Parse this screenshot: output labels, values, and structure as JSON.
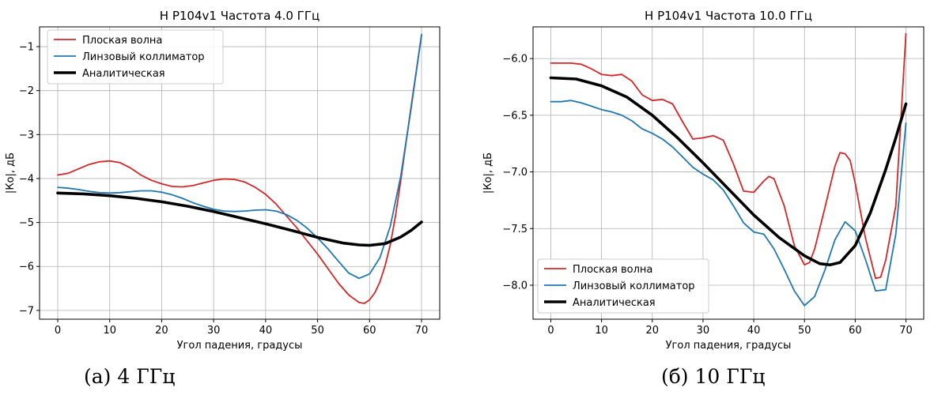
{
  "captions": {
    "a": "(а) 4 ГГц",
    "b": "(б) 10 ГГц"
  },
  "colors": {
    "plane": "#d62728",
    "lens": "#1f77b4",
    "analytic": "#000000",
    "grid": "#b0b0b0"
  },
  "chart_data": [
    {
      "type": "line",
      "title": "H P104v1 Частота 4.0 ГГц",
      "xlabel": "Угол падения, градусы",
      "ylabel": "|Ко|, дБ",
      "xlim": [
        -3.5,
        73.5
      ],
      "ylim": [
        -7.2,
        -0.55
      ],
      "xticks": [
        0,
        10,
        20,
        30,
        40,
        50,
        60,
        70
      ],
      "xtick_labels": [
        "0",
        "10",
        "20",
        "30",
        "40",
        "50",
        "60",
        "70"
      ],
      "yticks": [
        -7,
        -6,
        -5,
        -4,
        -3,
        -2,
        -1
      ],
      "ytick_labels": [
        "−7",
        "−6",
        "−5",
        "−4",
        "−3",
        "−2",
        "−1"
      ],
      "grid": true,
      "legend": "top-left",
      "series": [
        {
          "name": "Плоская волна",
          "color_key": "plane",
          "width": 1.8,
          "x": [
            0,
            2,
            4,
            6,
            8,
            10,
            12,
            14,
            16,
            18,
            20,
            22,
            24,
            26,
            28,
            30,
            32,
            34,
            36,
            38,
            40,
            42,
            44,
            46,
            48,
            50,
            52,
            54,
            56,
            58,
            59,
            60,
            61,
            62,
            63,
            64,
            65,
            66,
            67,
            68,
            69,
            70
          ],
          "y": [
            -3.92,
            -3.88,
            -3.78,
            -3.68,
            -3.62,
            -3.6,
            -3.64,
            -3.76,
            -3.92,
            -4.04,
            -4.12,
            -4.18,
            -4.19,
            -4.16,
            -4.1,
            -4.04,
            -4.01,
            -4.02,
            -4.08,
            -4.2,
            -4.36,
            -4.58,
            -4.85,
            -5.12,
            -5.42,
            -5.72,
            -6.05,
            -6.38,
            -6.65,
            -6.82,
            -6.84,
            -6.76,
            -6.6,
            -6.35,
            -5.98,
            -5.5,
            -4.85,
            -4.05,
            -3.2,
            -2.35,
            -1.55,
            -0.75
          ]
        },
        {
          "name": "Линзовый коллиматор",
          "color_key": "lens",
          "width": 1.8,
          "x": [
            0,
            2,
            4,
            6,
            8,
            10,
            12,
            14,
            16,
            18,
            20,
            22,
            24,
            26,
            28,
            30,
            32,
            34,
            36,
            38,
            40,
            42,
            44,
            46,
            48,
            50,
            52,
            54,
            56,
            58,
            60,
            62,
            64,
            66,
            68,
            70
          ],
          "y": [
            -4.2,
            -4.22,
            -4.25,
            -4.29,
            -4.32,
            -4.33,
            -4.32,
            -4.3,
            -4.28,
            -4.28,
            -4.31,
            -4.37,
            -4.45,
            -4.55,
            -4.63,
            -4.7,
            -4.74,
            -4.75,
            -4.74,
            -4.72,
            -4.71,
            -4.74,
            -4.82,
            -4.95,
            -5.13,
            -5.35,
            -5.6,
            -5.88,
            -6.15,
            -6.27,
            -6.17,
            -5.8,
            -5.08,
            -3.95,
            -2.4,
            -0.72
          ]
        },
        {
          "name": "Аналитическая",
          "color_key": "analytic",
          "width": 3.6,
          "x": [
            0,
            5,
            10,
            15,
            20,
            25,
            30,
            35,
            40,
            45,
            50,
            55,
            58,
            60,
            63,
            66,
            68,
            70
          ],
          "y": [
            -4.33,
            -4.35,
            -4.39,
            -4.45,
            -4.53,
            -4.63,
            -4.75,
            -4.89,
            -5.03,
            -5.18,
            -5.34,
            -5.47,
            -5.51,
            -5.52,
            -5.48,
            -5.33,
            -5.18,
            -4.99
          ]
        }
      ]
    },
    {
      "type": "line",
      "title": "H P104v1 Частота 10.0 ГГц",
      "xlabel": "Угол падения, градусы",
      "ylabel": "|Ко|, дБ",
      "xlim": [
        -3.5,
        73.5
      ],
      "ylim": [
        -8.3,
        -5.72
      ],
      "xticks": [
        0,
        10,
        20,
        30,
        40,
        50,
        60,
        70
      ],
      "xtick_labels": [
        "0",
        "10",
        "20",
        "30",
        "40",
        "50",
        "60",
        "70"
      ],
      "yticks": [
        -8.0,
        -7.5,
        -7.0,
        -6.5,
        -6.0
      ],
      "ytick_labels": [
        "−8.0",
        "−7.5",
        "−7.0",
        "−6.5",
        "−6.0"
      ],
      "grid": true,
      "legend": "bottom-left",
      "series": [
        {
          "name": "Плоская волна",
          "color_key": "plane",
          "width": 1.8,
          "x": [
            0,
            2,
            4,
            6,
            8,
            10,
            12,
            14,
            16,
            18,
            20,
            22,
            24,
            26,
            28,
            30,
            32,
            34,
            36,
            38,
            40,
            42,
            43,
            44,
            46,
            48,
            50,
            51,
            52,
            54,
            56,
            57,
            58,
            59,
            60,
            62,
            64,
            65,
            66,
            68,
            70
          ],
          "y": [
            -6.04,
            -6.04,
            -6.04,
            -6.05,
            -6.09,
            -6.14,
            -6.15,
            -6.14,
            -6.2,
            -6.32,
            -6.37,
            -6.36,
            -6.4,
            -6.56,
            -6.71,
            -6.7,
            -6.68,
            -6.72,
            -6.93,
            -7.17,
            -7.18,
            -7.08,
            -7.04,
            -7.06,
            -7.3,
            -7.65,
            -7.82,
            -7.8,
            -7.68,
            -7.32,
            -6.95,
            -6.83,
            -6.84,
            -6.9,
            -7.1,
            -7.58,
            -7.94,
            -7.93,
            -7.78,
            -7.3,
            -5.78
          ]
        },
        {
          "name": "Линзовый коллиматор",
          "color_key": "lens",
          "width": 1.8,
          "x": [
            0,
            2,
            4,
            6,
            8,
            10,
            12,
            14,
            16,
            18,
            20,
            22,
            24,
            26,
            28,
            30,
            32,
            34,
            36,
            38,
            40,
            42,
            44,
            46,
            48,
            50,
            52,
            54,
            56,
            58,
            60,
            62,
            64,
            66,
            68,
            70
          ],
          "y": [
            -6.38,
            -6.38,
            -6.37,
            -6.39,
            -6.42,
            -6.45,
            -6.47,
            -6.5,
            -6.55,
            -6.62,
            -6.66,
            -6.71,
            -6.78,
            -6.87,
            -6.96,
            -7.02,
            -7.07,
            -7.16,
            -7.3,
            -7.45,
            -7.53,
            -7.55,
            -7.68,
            -7.86,
            -8.05,
            -8.18,
            -8.1,
            -7.87,
            -7.6,
            -7.44,
            -7.52,
            -7.77,
            -8.05,
            -8.04,
            -7.55,
            -6.57
          ]
        },
        {
          "name": "Аналитическая",
          "color_key": "analytic",
          "width": 3.6,
          "x": [
            0,
            5,
            10,
            15,
            20,
            25,
            30,
            35,
            40,
            45,
            50,
            53,
            55,
            57,
            60,
            63,
            66,
            68,
            70
          ],
          "y": [
            -6.17,
            -6.18,
            -6.24,
            -6.34,
            -6.5,
            -6.7,
            -6.92,
            -7.15,
            -7.38,
            -7.58,
            -7.74,
            -7.81,
            -7.82,
            -7.8,
            -7.65,
            -7.36,
            -6.98,
            -6.7,
            -6.4
          ]
        }
      ]
    }
  ]
}
